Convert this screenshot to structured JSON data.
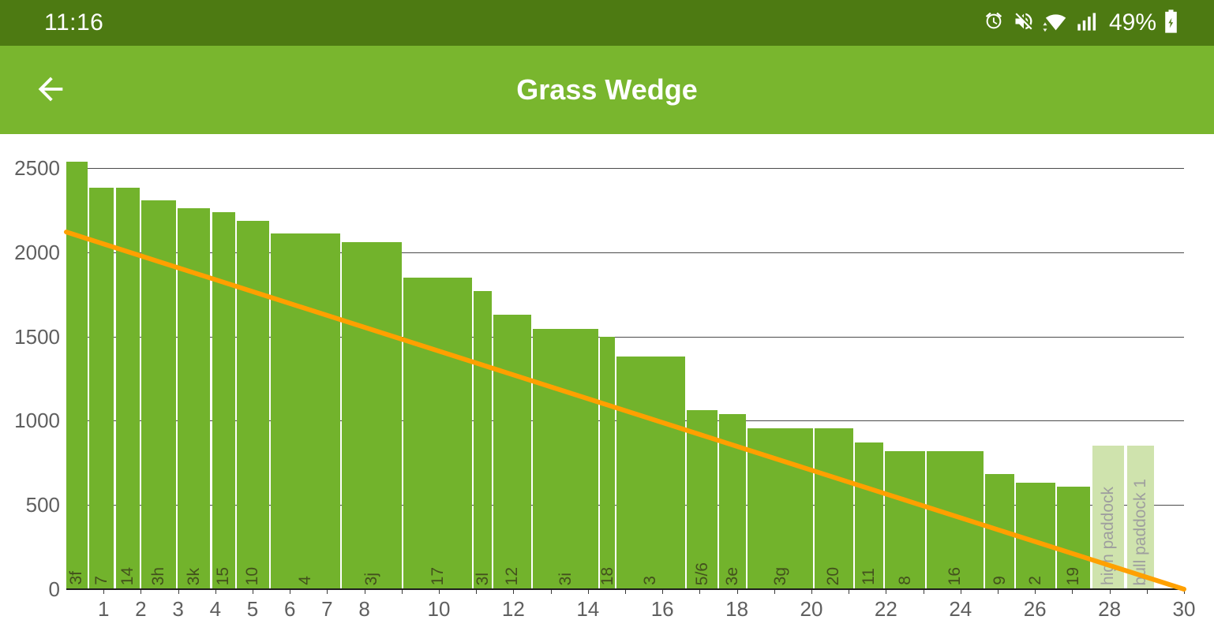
{
  "status_bar": {
    "time": "11:16",
    "battery_percent": "49%",
    "icons": [
      "alarm-icon",
      "volume-off-icon",
      "wifi-icon",
      "signal-bars-icon",
      "battery-charging-icon"
    ]
  },
  "app_bar": {
    "title": "Grass Wedge"
  },
  "chart_data": {
    "type": "bar",
    "title": "Grass Wedge",
    "xlabel": "",
    "ylabel": "",
    "xlim": [
      0,
      30
    ],
    "ylim": [
      0,
      2500
    ],
    "yticks": [
      0,
      500,
      1000,
      1500,
      2000,
      2500
    ],
    "xticks": [
      1,
      2,
      3,
      4,
      5,
      6,
      7,
      8,
      10,
      12,
      14,
      16,
      18,
      20,
      22,
      24,
      26,
      28,
      30
    ],
    "grid": true,
    "bar_color": "#72B32C",
    "faded_bar_color": "#CFE3AD",
    "demand_line": {
      "color": "#FFA000",
      "x": [
        0,
        30
      ],
      "y": [
        2120,
        0
      ]
    },
    "bars": [
      {
        "label": "3f",
        "x0": 0.0,
        "x1": 0.57,
        "value": 2540
      },
      {
        "label": "7",
        "x0": 0.62,
        "x1": 1.28,
        "value": 2385
      },
      {
        "label": "14",
        "x0": 1.33,
        "x1": 1.97,
        "value": 2385
      },
      {
        "label": "3h",
        "x0": 2.02,
        "x1": 2.94,
        "value": 2310
      },
      {
        "label": "3k",
        "x0": 2.99,
        "x1": 3.86,
        "value": 2260
      },
      {
        "label": "15",
        "x0": 3.91,
        "x1": 4.53,
        "value": 2240
      },
      {
        "label": "10",
        "x0": 4.58,
        "x1": 5.44,
        "value": 2185
      },
      {
        "label": "4",
        "x0": 5.49,
        "x1": 7.35,
        "value": 2110
      },
      {
        "label": "3j",
        "x0": 7.4,
        "x1": 9.0,
        "value": 2060
      },
      {
        "label": "17",
        "x0": 9.05,
        "x1": 10.89,
        "value": 1850
      },
      {
        "label": "3l",
        "x0": 10.94,
        "x1": 11.42,
        "value": 1770
      },
      {
        "label": "12",
        "x0": 11.47,
        "x1": 12.48,
        "value": 1630
      },
      {
        "label": "3i",
        "x0": 12.53,
        "x1": 14.28,
        "value": 1545
      },
      {
        "label": "18",
        "x0": 14.33,
        "x1": 14.72,
        "value": 1500
      },
      {
        "label": "3",
        "x0": 14.77,
        "x1": 16.61,
        "value": 1380
      },
      {
        "label": "5/6",
        "x0": 16.66,
        "x1": 17.48,
        "value": 1065
      },
      {
        "label": "3e",
        "x0": 17.53,
        "x1": 18.24,
        "value": 1040
      },
      {
        "label": "3g",
        "x0": 18.29,
        "x1": 20.04,
        "value": 955
      },
      {
        "label": "20",
        "x0": 20.09,
        "x1": 21.12,
        "value": 955
      },
      {
        "label": "11",
        "x0": 21.17,
        "x1": 21.92,
        "value": 870
      },
      {
        "label": "8",
        "x0": 21.97,
        "x1": 23.05,
        "value": 820
      },
      {
        "label": "16",
        "x0": 23.1,
        "x1": 24.62,
        "value": 820
      },
      {
        "label": "9",
        "x0": 24.67,
        "x1": 25.44,
        "value": 685
      },
      {
        "label": "2",
        "x0": 25.49,
        "x1": 26.54,
        "value": 630
      },
      {
        "label": "19",
        "x0": 26.59,
        "x1": 27.47,
        "value": 610
      },
      {
        "label": "high paddock",
        "x0": 27.55,
        "x1": 28.4,
        "value": 850,
        "faded": true
      },
      {
        "label": "bull paddock 1",
        "x0": 28.47,
        "x1": 29.2,
        "value": 850,
        "faded": true
      }
    ]
  }
}
